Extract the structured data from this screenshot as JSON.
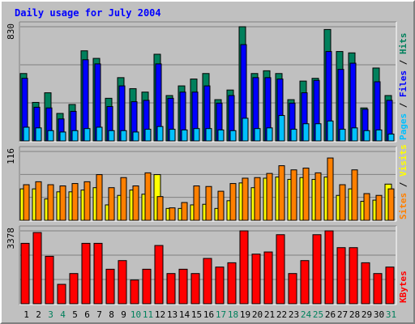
{
  "title": "Daily usage for July 2004",
  "colors": {
    "title": "#0000ff",
    "hits": "#00805c",
    "files": "#0000ff",
    "pages": "#00c0ff",
    "visits": "#ff8000",
    "sites": "#ffff00",
    "kbytes": "#ff0000",
    "weekend_label": "#00805c",
    "weekday_label": "#000000",
    "panel_bg": "#c0c0c0",
    "gridline": "#808080"
  },
  "chart_data": [
    {
      "type": "bar",
      "panel": "hits-files-pages",
      "ymax_label": "830",
      "ylim": [
        0,
        830
      ],
      "grid": true,
      "right_label": [
        {
          "text": "Pages",
          "color": "#00c0ff"
        },
        {
          "text": " / ",
          "color": "#000000"
        },
        {
          "text": "Files",
          "color": "#0000ff"
        },
        {
          "text": " / ",
          "color": "#000000"
        },
        {
          "text": "Hits",
          "color": "#00805c"
        }
      ],
      "categories": [
        "1",
        "2",
        "3",
        "4",
        "5",
        "6",
        "7",
        "8",
        "9",
        "10",
        "11",
        "12",
        "13",
        "14",
        "15",
        "16",
        "17",
        "18",
        "19",
        "20",
        "21",
        "22",
        "23",
        "24",
        "25",
        "26",
        "27",
        "28",
        "29",
        "30",
        "31"
      ],
      "series": [
        {
          "name": "Hits",
          "color": "#00805c",
          "values": [
            490,
            280,
            350,
            200,
            265,
            655,
            600,
            310,
            460,
            380,
            355,
            630,
            330,
            400,
            450,
            490,
            300,
            370,
            845,
            490,
            510,
            490,
            300,
            435,
            455,
            810,
            650,
            640,
            240,
            530,
            330
          ]
        },
        {
          "name": "Files",
          "color": "#0000ff",
          "values": [
            455,
            245,
            240,
            160,
            215,
            590,
            560,
            250,
            400,
            285,
            295,
            560,
            310,
            355,
            355,
            400,
            275,
            330,
            700,
            460,
            460,
            450,
            275,
            350,
            440,
            650,
            520,
            565,
            230,
            430,
            295
          ]
        },
        {
          "name": "Pages",
          "color": "#00c0ff",
          "values": [
            100,
            95,
            75,
            65,
            75,
            90,
            100,
            75,
            75,
            65,
            85,
            105,
            85,
            80,
            90,
            90,
            80,
            75,
            165,
            90,
            95,
            185,
            85,
            125,
            125,
            145,
            85,
            95,
            75,
            80,
            50
          ]
        }
      ]
    },
    {
      "type": "bar",
      "panel": "visits-sites",
      "ymax_label": "116",
      "ylim": [
        0,
        116
      ],
      "grid": true,
      "right_label": [
        {
          "text": "Sites",
          "color": "#ff8000"
        },
        {
          "text": " / ",
          "color": "#000000"
        },
        {
          "text": "Visits",
          "color": "#ffff00"
        }
      ],
      "categories": [
        "1",
        "2",
        "3",
        "4",
        "5",
        "6",
        "7",
        "8",
        "9",
        "10",
        "11",
        "12",
        "13",
        "14",
        "15",
        "16",
        "17",
        "18",
        "19",
        "20",
        "21",
        "22",
        "23",
        "24",
        "25",
        "26",
        "27",
        "28",
        "29",
        "30",
        "31"
      ],
      "series": [
        {
          "name": "Visits",
          "color": "#ffff00",
          "values": [
            53,
            53,
            36,
            48,
            48,
            51,
            55,
            26,
            42,
            51,
            44,
            77,
            20,
            20,
            26,
            27,
            20,
            33,
            63,
            55,
            71,
            73,
            69,
            72,
            69,
            73,
            42,
            53,
            32,
            34,
            61
          ]
        },
        {
          "name": "Sites",
          "color": "#ff8000",
          "values": [
            60,
            65,
            60,
            58,
            62,
            65,
            77,
            55,
            72,
            58,
            80,
            40,
            21,
            30,
            58,
            57,
            49,
            62,
            71,
            72,
            79,
            92,
            85,
            88,
            80,
            105,
            60,
            85,
            45,
            42,
            53
          ]
        }
      ]
    },
    {
      "type": "bar",
      "panel": "kbytes",
      "ymax_label": "3378",
      "ylim": [
        0,
        3378
      ],
      "grid": true,
      "right_label": [
        {
          "text": "KBytes",
          "color": "#ff0000"
        }
      ],
      "categories": [
        "1",
        "2",
        "3",
        "4",
        "5",
        "6",
        "7",
        "8",
        "9",
        "10",
        "11",
        "12",
        "13",
        "14",
        "15",
        "16",
        "17",
        "18",
        "19",
        "20",
        "21",
        "22",
        "23",
        "24",
        "25",
        "26",
        "27",
        "28",
        "29",
        "30",
        "31"
      ],
      "series": [
        {
          "name": "KBytes",
          "color": "#ff0000",
          "values": [
            2800,
            3300,
            2200,
            900,
            1400,
            2800,
            2800,
            1600,
            2000,
            1100,
            1600,
            2700,
            1400,
            1600,
            1400,
            2100,
            1700,
            1900,
            3400,
            2300,
            2400,
            3200,
            1400,
            2000,
            3200,
            3500,
            2600,
            2600,
            1900,
            1400,
            1700
          ]
        }
      ]
    }
  ],
  "x_labels": [
    {
      "text": "1",
      "weekend": false
    },
    {
      "text": "2",
      "weekend": false
    },
    {
      "text": "3",
      "weekend": true
    },
    {
      "text": "4",
      "weekend": true
    },
    {
      "text": "5",
      "weekend": false
    },
    {
      "text": "6",
      "weekend": false
    },
    {
      "text": "7",
      "weekend": false
    },
    {
      "text": "8",
      "weekend": false
    },
    {
      "text": "9",
      "weekend": false
    },
    {
      "text": "10",
      "weekend": true
    },
    {
      "text": "11",
      "weekend": true
    },
    {
      "text": "12",
      "weekend": false
    },
    {
      "text": "13",
      "weekend": false
    },
    {
      "text": "14",
      "weekend": false
    },
    {
      "text": "15",
      "weekend": false
    },
    {
      "text": "16",
      "weekend": false
    },
    {
      "text": "17",
      "weekend": true
    },
    {
      "text": "18",
      "weekend": true
    },
    {
      "text": "19",
      "weekend": false
    },
    {
      "text": "20",
      "weekend": false
    },
    {
      "text": "21",
      "weekend": false
    },
    {
      "text": "22",
      "weekend": false
    },
    {
      "text": "23",
      "weekend": false
    },
    {
      "text": "24",
      "weekend": true
    },
    {
      "text": "25",
      "weekend": true
    },
    {
      "text": "26",
      "weekend": false
    },
    {
      "text": "27",
      "weekend": false
    },
    {
      "text": "28",
      "weekend": false
    },
    {
      "text": "29",
      "weekend": false
    },
    {
      "text": "30",
      "weekend": false
    },
    {
      "text": "31",
      "weekend": true
    }
  ]
}
